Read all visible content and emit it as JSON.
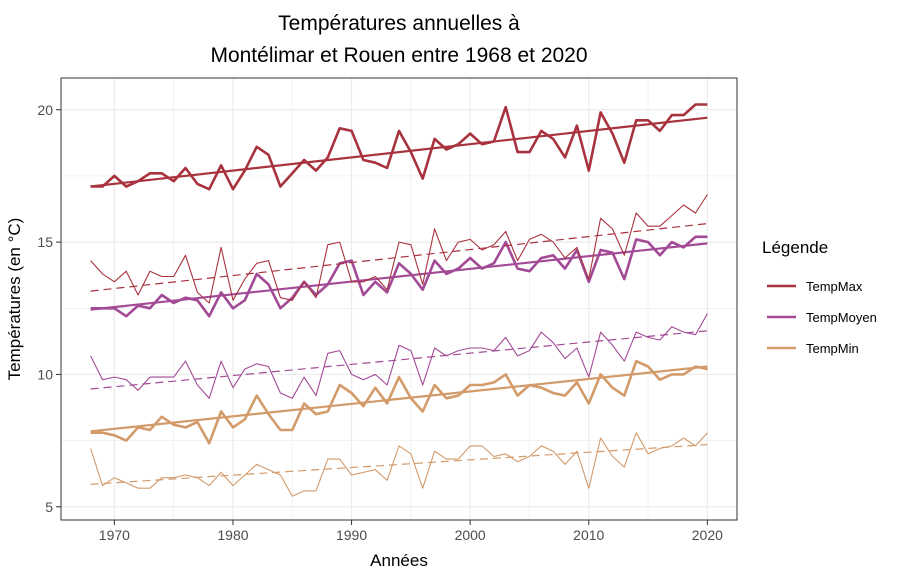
{
  "chart_data": {
    "type": "line",
    "title": [
      "Températures annuelles à",
      "Montélimar et Rouen entre 1968 et 2020"
    ],
    "xlabel": "Années",
    "ylabel": "Températures (en °C)",
    "xlim": [
      1965.5,
      2022.5
    ],
    "ylim": [
      4.5,
      21.2
    ],
    "xticks": [
      1970,
      1980,
      1990,
      2000,
      2010,
      2020
    ],
    "yticks": [
      5,
      10,
      15,
      20
    ],
    "grid": true,
    "legend": {
      "title": "Légende",
      "position": "right",
      "entries": [
        {
          "label": "TempMax",
          "color": "#A8323E"
        },
        {
          "label": "TempMoyen",
          "color": "#A24A96"
        },
        {
          "label": "TempMin",
          "color": "#D39A6A"
        }
      ]
    },
    "x_start": 1968,
    "series": [
      {
        "group": "TempMax",
        "station": "Montélimar",
        "color": "#A8323E",
        "values": [
          17.1,
          17.1,
          17.5,
          17.1,
          17.3,
          17.6,
          17.6,
          17.3,
          17.8,
          17.2,
          17.0,
          17.9,
          17.0,
          17.7,
          18.6,
          18.3,
          17.1,
          17.6,
          18.1,
          17.7,
          18.2,
          19.3,
          19.2,
          18.1,
          18.0,
          17.8,
          19.2,
          18.4,
          17.4,
          18.9,
          18.5,
          18.7,
          19.1,
          18.7,
          18.8,
          20.1,
          18.4,
          18.4,
          19.2,
          18.9,
          18.2,
          19.4,
          17.7,
          19.9,
          19.1,
          18.0,
          19.6,
          19.6,
          19.2,
          19.8,
          19.8,
          20.2,
          20.2
        ]
      },
      {
        "group": "TempMax",
        "station": "Montélimar",
        "role": "tendance",
        "color": "#A8323E",
        "values": [
          17.1,
          19.7
        ]
      },
      {
        "group": "TempMoyen",
        "station": "Montélimar",
        "color": "#A24A96",
        "values": [
          12.5,
          12.5,
          12.5,
          12.2,
          12.6,
          12.5,
          13.0,
          12.7,
          12.9,
          12.8,
          12.2,
          13.1,
          12.5,
          12.8,
          13.8,
          13.4,
          12.5,
          12.9,
          13.5,
          13.0,
          13.4,
          14.2,
          14.3,
          13.0,
          13.5,
          13.1,
          14.2,
          13.8,
          13.2,
          14.3,
          13.8,
          14.0,
          14.4,
          14.0,
          14.2,
          15.0,
          14.0,
          13.9,
          14.4,
          14.5,
          14.0,
          14.7,
          13.5,
          14.7,
          14.6,
          13.6,
          15.1,
          15.0,
          14.5,
          15.0,
          14.8,
          15.2,
          15.2
        ]
      },
      {
        "group": "TempMoyen",
        "station": "Montélimar",
        "role": "tendance",
        "color": "#A24A96",
        "values": [
          12.45,
          14.95
        ]
      },
      {
        "group": "TempMin",
        "station": "Montélimar",
        "color": "#D39A6A",
        "values": [
          7.8,
          7.8,
          7.7,
          7.5,
          8.0,
          7.9,
          8.4,
          8.1,
          8.0,
          8.2,
          7.4,
          8.6,
          8.0,
          8.3,
          9.2,
          8.5,
          7.9,
          7.9,
          8.9,
          8.5,
          8.6,
          9.6,
          9.3,
          8.8,
          9.5,
          8.9,
          9.9,
          9.1,
          8.6,
          9.6,
          9.1,
          9.2,
          9.6,
          9.6,
          9.7,
          10.0,
          9.2,
          9.6,
          9.5,
          9.3,
          9.2,
          9.7,
          8.9,
          10.0,
          9.5,
          9.2,
          10.5,
          10.3,
          9.8,
          10.0,
          10.0,
          10.3,
          10.2
        ]
      },
      {
        "group": "TempMin",
        "station": "Montélimar",
        "role": "tendance",
        "color": "#D39A6A",
        "values": [
          7.85,
          10.3
        ]
      },
      {
        "group": "TempMax",
        "station": "Rouen",
        "color": "#A8323E",
        "values": [
          14.3,
          13.8,
          13.5,
          13.9,
          13.0,
          13.9,
          13.7,
          13.7,
          14.5,
          13.1,
          12.7,
          14.8,
          12.8,
          13.6,
          14.2,
          14.3,
          12.9,
          12.8,
          13.5,
          12.9,
          14.9,
          15.0,
          13.5,
          13.5,
          13.7,
          13.2,
          15.0,
          14.9,
          13.4,
          15.5,
          14.3,
          15.0,
          15.1,
          14.7,
          14.9,
          15.4,
          14.3,
          15.1,
          15.3,
          15.0,
          14.4,
          14.8,
          13.6,
          15.9,
          15.5,
          14.5,
          16.1,
          15.6,
          15.6,
          16.0,
          16.4,
          16.1,
          16.8
        ]
      },
      {
        "group": "TempMax",
        "station": "Rouen",
        "role": "tendance",
        "color": "#A8323E",
        "values": [
          13.15,
          15.7
        ]
      },
      {
        "group": "TempMoyen",
        "station": "Rouen",
        "color": "#A24A96",
        "values": [
          10.7,
          9.8,
          9.9,
          9.8,
          9.4,
          9.9,
          9.9,
          9.9,
          10.5,
          9.6,
          9.1,
          10.5,
          9.5,
          10.2,
          10.4,
          10.3,
          9.3,
          9.1,
          9.9,
          9.2,
          10.8,
          10.9,
          10.0,
          9.8,
          10.0,
          9.6,
          11.1,
          10.9,
          9.6,
          11.0,
          10.7,
          10.9,
          11.0,
          11.0,
          10.9,
          11.4,
          10.7,
          10.9,
          11.6,
          11.2,
          10.6,
          11.0,
          9.9,
          11.6,
          11.1,
          10.5,
          11.6,
          11.4,
          11.3,
          11.8,
          11.6,
          11.5,
          12.3
        ]
      },
      {
        "group": "TempMoyen",
        "station": "Rouen",
        "role": "tendance",
        "color": "#A24A96",
        "values": [
          9.45,
          11.65
        ]
      },
      {
        "group": "TempMin",
        "station": "Rouen",
        "color": "#D39A6A",
        "values": [
          7.2,
          5.8,
          6.1,
          5.9,
          5.7,
          5.7,
          6.1,
          6.1,
          6.2,
          6.1,
          5.8,
          6.3,
          5.8,
          6.2,
          6.6,
          6.4,
          6.2,
          5.4,
          5.6,
          5.6,
          6.8,
          6.8,
          6.2,
          6.3,
          6.4,
          6.0,
          7.3,
          7.0,
          5.7,
          7.1,
          6.8,
          6.8,
          7.3,
          7.3,
          6.9,
          7.0,
          6.7,
          6.9,
          7.3,
          7.1,
          6.6,
          7.1,
          5.7,
          7.6,
          6.9,
          6.5,
          7.8,
          7.0,
          7.2,
          7.3,
          7.6,
          7.3,
          7.8
        ]
      },
      {
        "group": "TempMin",
        "station": "Rouen",
        "role": "tendance",
        "color": "#D39A6A",
        "values": [
          5.85,
          7.35
        ]
      }
    ]
  }
}
